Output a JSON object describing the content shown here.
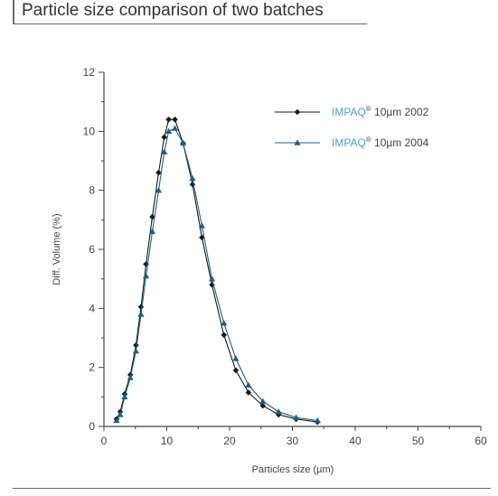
{
  "title": "Particle size comparison of two batches",
  "chart_data": {
    "type": "line",
    "xlabel": "Particles size (µm)",
    "ylabel": "Diff. Volume (%)",
    "xlim": [
      0,
      60
    ],
    "ylim": [
      0,
      12
    ],
    "x_ticks": [
      0,
      10,
      20,
      30,
      40,
      50,
      60
    ],
    "y_ticks": [
      0,
      2,
      4,
      6,
      8,
      10,
      12
    ],
    "grid": false,
    "legend_position": "top-right",
    "series": [
      {
        "name": "IMPAQ® 10µm 2002",
        "brand": "IMPAQ",
        "mark": "®",
        "suffix": " 10µm 2002",
        "color": "#1a1a1a",
        "marker": "diamond",
        "x": [
          2,
          2.6,
          3.3,
          4.2,
          5.1,
          5.9,
          6.7,
          7.7,
          8.7,
          9.6,
          10.3,
          11.3,
          12.6,
          14.1,
          15.6,
          17.2,
          19.1,
          21.0,
          23.0,
          25.3,
          27.8,
          30.6,
          34
        ],
        "y": [
          0.25,
          0.5,
          1.1,
          1.75,
          2.75,
          4.05,
          5.5,
          7.1,
          8.6,
          9.8,
          10.4,
          10.4,
          9.6,
          8.2,
          6.4,
          4.8,
          3.1,
          1.9,
          1.15,
          0.7,
          0.4,
          0.25,
          0.15
        ]
      },
      {
        "name": "IMPAQ® 10µm 2004",
        "brand": "IMPAQ",
        "mark": "®",
        "suffix": " 10µm 2004",
        "color": "#1f5f8a",
        "marker": "triangle",
        "x": [
          2,
          2.6,
          3.3,
          4.2,
          5.1,
          5.9,
          6.7,
          7.7,
          8.7,
          9.6,
          10.3,
          11.3,
          12.6,
          14.1,
          15.6,
          17.2,
          19.1,
          21.0,
          23.0,
          25.3,
          27.8,
          30.6,
          34
        ],
        "y": [
          0.2,
          0.4,
          1.0,
          1.65,
          2.55,
          3.8,
          5.1,
          6.6,
          8.0,
          9.3,
          10.0,
          10.1,
          9.6,
          8.4,
          6.8,
          5.0,
          3.5,
          2.3,
          1.4,
          0.85,
          0.5,
          0.3,
          0.2
        ]
      }
    ]
  }
}
